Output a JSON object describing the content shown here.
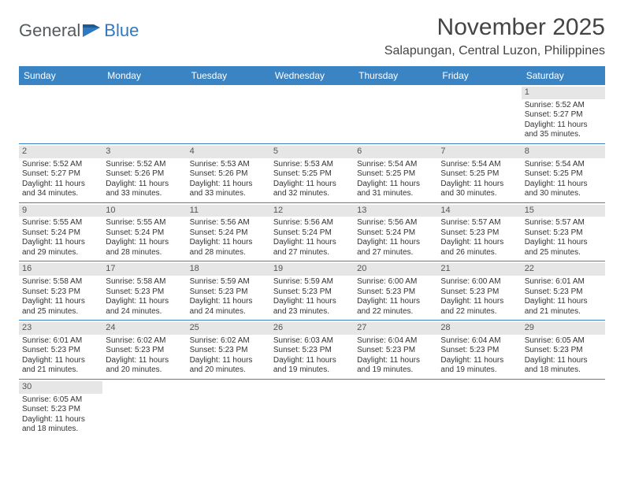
{
  "brand": {
    "part1": "General",
    "part2": "Blue"
  },
  "title": "November 2025",
  "location": "Salapungan, Central Luzon, Philippines",
  "colors": {
    "header_bg": "#3b84c4",
    "header_text": "#ffffff",
    "daynum_bg": "#e6e6e6",
    "daynum_text": "#555555",
    "body_text": "#333333",
    "row_border": "#3b84c4",
    "brand_gray": "#555a5e",
    "brand_blue": "#2f78c2",
    "page_bg": "#ffffff"
  },
  "typography": {
    "title_fontsize": 30,
    "location_fontsize": 16,
    "dow_fontsize": 12,
    "daynum_fontsize": 11,
    "cell_fontsize": 10
  },
  "day_labels": [
    "Sunday",
    "Monday",
    "Tuesday",
    "Wednesday",
    "Thursday",
    "Friday",
    "Saturday"
  ],
  "labels": {
    "sunrise_prefix": "Sunrise: ",
    "sunset_prefix": "Sunset: ",
    "daylight_prefix": "Daylight: ",
    "hours_word": " hours",
    "and_word": "and ",
    "minutes_word": " minutes."
  },
  "weeks": [
    [
      null,
      null,
      null,
      null,
      null,
      null,
      {
        "n": 1,
        "rise": "5:52 AM",
        "set": "5:27 PM",
        "dh": 11,
        "dm": 35
      }
    ],
    [
      {
        "n": 2,
        "rise": "5:52 AM",
        "set": "5:27 PM",
        "dh": 11,
        "dm": 34
      },
      {
        "n": 3,
        "rise": "5:52 AM",
        "set": "5:26 PM",
        "dh": 11,
        "dm": 33
      },
      {
        "n": 4,
        "rise": "5:53 AM",
        "set": "5:26 PM",
        "dh": 11,
        "dm": 33
      },
      {
        "n": 5,
        "rise": "5:53 AM",
        "set": "5:25 PM",
        "dh": 11,
        "dm": 32
      },
      {
        "n": 6,
        "rise": "5:54 AM",
        "set": "5:25 PM",
        "dh": 11,
        "dm": 31
      },
      {
        "n": 7,
        "rise": "5:54 AM",
        "set": "5:25 PM",
        "dh": 11,
        "dm": 30
      },
      {
        "n": 8,
        "rise": "5:54 AM",
        "set": "5:25 PM",
        "dh": 11,
        "dm": 30
      }
    ],
    [
      {
        "n": 9,
        "rise": "5:55 AM",
        "set": "5:24 PM",
        "dh": 11,
        "dm": 29
      },
      {
        "n": 10,
        "rise": "5:55 AM",
        "set": "5:24 PM",
        "dh": 11,
        "dm": 28
      },
      {
        "n": 11,
        "rise": "5:56 AM",
        "set": "5:24 PM",
        "dh": 11,
        "dm": 28
      },
      {
        "n": 12,
        "rise": "5:56 AM",
        "set": "5:24 PM",
        "dh": 11,
        "dm": 27
      },
      {
        "n": 13,
        "rise": "5:56 AM",
        "set": "5:24 PM",
        "dh": 11,
        "dm": 27
      },
      {
        "n": 14,
        "rise": "5:57 AM",
        "set": "5:23 PM",
        "dh": 11,
        "dm": 26
      },
      {
        "n": 15,
        "rise": "5:57 AM",
        "set": "5:23 PM",
        "dh": 11,
        "dm": 25
      }
    ],
    [
      {
        "n": 16,
        "rise": "5:58 AM",
        "set": "5:23 PM",
        "dh": 11,
        "dm": 25
      },
      {
        "n": 17,
        "rise": "5:58 AM",
        "set": "5:23 PM",
        "dh": 11,
        "dm": 24
      },
      {
        "n": 18,
        "rise": "5:59 AM",
        "set": "5:23 PM",
        "dh": 11,
        "dm": 24
      },
      {
        "n": 19,
        "rise": "5:59 AM",
        "set": "5:23 PM",
        "dh": 11,
        "dm": 23
      },
      {
        "n": 20,
        "rise": "6:00 AM",
        "set": "5:23 PM",
        "dh": 11,
        "dm": 22
      },
      {
        "n": 21,
        "rise": "6:00 AM",
        "set": "5:23 PM",
        "dh": 11,
        "dm": 22
      },
      {
        "n": 22,
        "rise": "6:01 AM",
        "set": "5:23 PM",
        "dh": 11,
        "dm": 21
      }
    ],
    [
      {
        "n": 23,
        "rise": "6:01 AM",
        "set": "5:23 PM",
        "dh": 11,
        "dm": 21
      },
      {
        "n": 24,
        "rise": "6:02 AM",
        "set": "5:23 PM",
        "dh": 11,
        "dm": 20
      },
      {
        "n": 25,
        "rise": "6:02 AM",
        "set": "5:23 PM",
        "dh": 11,
        "dm": 20
      },
      {
        "n": 26,
        "rise": "6:03 AM",
        "set": "5:23 PM",
        "dh": 11,
        "dm": 19
      },
      {
        "n": 27,
        "rise": "6:04 AM",
        "set": "5:23 PM",
        "dh": 11,
        "dm": 19
      },
      {
        "n": 28,
        "rise": "6:04 AM",
        "set": "5:23 PM",
        "dh": 11,
        "dm": 19
      },
      {
        "n": 29,
        "rise": "6:05 AM",
        "set": "5:23 PM",
        "dh": 11,
        "dm": 18
      }
    ],
    [
      {
        "n": 30,
        "rise": "6:05 AM",
        "set": "5:23 PM",
        "dh": 11,
        "dm": 18
      },
      null,
      null,
      null,
      null,
      null,
      null
    ]
  ]
}
